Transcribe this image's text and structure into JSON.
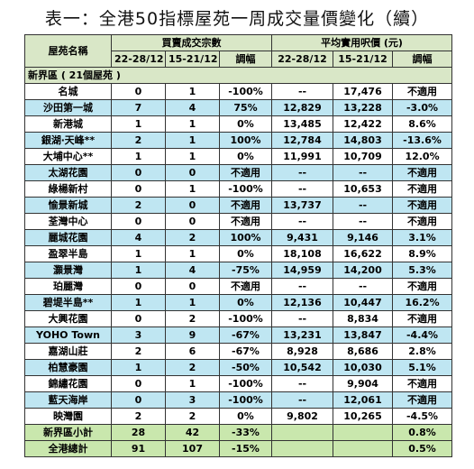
{
  "title": "表一：全港50指標屋苑一周成交量價變化（續）",
  "headers": {
    "estate": "屋苑名稱",
    "volume_group": "買賣成交宗數",
    "price_group": "平均實用呎價 (元)",
    "period1": "22-28/12",
    "period2": "15-21/12",
    "change": "調幅"
  },
  "section": "新界區 ( 21個屋苑 )",
  "rows": [
    {
      "name": "名城",
      "v1": "0",
      "v2": "1",
      "vchg": "-100%",
      "p1": "--",
      "p2": "17,476",
      "pchg": "不適用"
    },
    {
      "name": "沙田第一城",
      "v1": "7",
      "v2": "4",
      "vchg": "75%",
      "p1": "12,829",
      "p2": "13,228",
      "pchg": "-3.0%"
    },
    {
      "name": "新港城",
      "v1": "1",
      "v2": "1",
      "vchg": "0%",
      "p1": "13,485",
      "p2": "12,422",
      "pchg": "8.6%"
    },
    {
      "name": "銀湖‧天峰**",
      "v1": "2",
      "v2": "1",
      "vchg": "100%",
      "p1": "12,784",
      "p2": "14,803",
      "pchg": "-13.6%"
    },
    {
      "name": "大埔中心**",
      "v1": "1",
      "v2": "1",
      "vchg": "0%",
      "p1": "11,991",
      "p2": "10,709",
      "pchg": "12.0%"
    },
    {
      "name": "太湖花園",
      "v1": "0",
      "v2": "0",
      "vchg": "不適用",
      "p1": "--",
      "p2": "--",
      "pchg": "不適用"
    },
    {
      "name": "綠楊新村",
      "v1": "0",
      "v2": "1",
      "vchg": "-100%",
      "p1": "--",
      "p2": "10,653",
      "pchg": "不適用"
    },
    {
      "name": "愉景新城",
      "v1": "2",
      "v2": "0",
      "vchg": "不適用",
      "p1": "13,737",
      "p2": "--",
      "pchg": "不適用"
    },
    {
      "name": "荃灣中心",
      "v1": "0",
      "v2": "0",
      "vchg": "不適用",
      "p1": "--",
      "p2": "--",
      "pchg": "不適用"
    },
    {
      "name": "麗城花園",
      "v1": "4",
      "v2": "2",
      "vchg": "100%",
      "p1": "9,431",
      "p2": "9,146",
      "pchg": "3.1%"
    },
    {
      "name": "盈翠半島",
      "v1": "1",
      "v2": "1",
      "vchg": "0%",
      "p1": "18,108",
      "p2": "16,622",
      "pchg": "8.9%"
    },
    {
      "name": "灝景灣",
      "v1": "1",
      "v2": "4",
      "vchg": "-75%",
      "p1": "14,959",
      "p2": "14,200",
      "pchg": "5.3%"
    },
    {
      "name": "珀麗灣",
      "v1": "0",
      "v2": "0",
      "vchg": "不適用",
      "p1": "--",
      "p2": "--",
      "pchg": "不適用"
    },
    {
      "name": "碧堤半島**",
      "v1": "1",
      "v2": "1",
      "vchg": "0%",
      "p1": "12,136",
      "p2": "10,447",
      "pchg": "16.2%"
    },
    {
      "name": "大興花園",
      "v1": "0",
      "v2": "2",
      "vchg": "-100%",
      "p1": "--",
      "p2": "8,834",
      "pchg": "不適用"
    },
    {
      "name": "YOHO Town",
      "v1": "3",
      "v2": "9",
      "vchg": "-67%",
      "p1": "13,231",
      "p2": "13,847",
      "pchg": "-4.4%"
    },
    {
      "name": "嘉湖山莊",
      "v1": "2",
      "v2": "6",
      "vchg": "-67%",
      "p1": "8,928",
      "p2": "8,686",
      "pchg": "2.8%"
    },
    {
      "name": "柏慧豪園",
      "v1": "1",
      "v2": "2",
      "vchg": "-50%",
      "p1": "10,542",
      "p2": "10,030",
      "pchg": "5.1%"
    },
    {
      "name": "錦繡花園",
      "v1": "0",
      "v2": "1",
      "vchg": "-100%",
      "p1": "--",
      "p2": "9,904",
      "pchg": "不適用"
    },
    {
      "name": "藍天海岸",
      "v1": "0",
      "v2": "3",
      "vchg": "-100%",
      "p1": "--",
      "p2": "12,061",
      "pchg": "不適用"
    },
    {
      "name": "映灣園",
      "v1": "2",
      "v2": "2",
      "vchg": "0%",
      "p1": "9,802",
      "p2": "10,265",
      "pchg": "-4.5%"
    }
  ],
  "totals": [
    {
      "name": "新界區小計",
      "v1": "28",
      "v2": "42",
      "vchg": "-33%",
      "p1": "",
      "p2": "",
      "pchg": "0.8%"
    },
    {
      "name": "全港總計",
      "v1": "91",
      "v2": "107",
      "vchg": "-15%",
      "p1": "",
      "p2": "",
      "pchg": "0.5%"
    }
  ]
}
